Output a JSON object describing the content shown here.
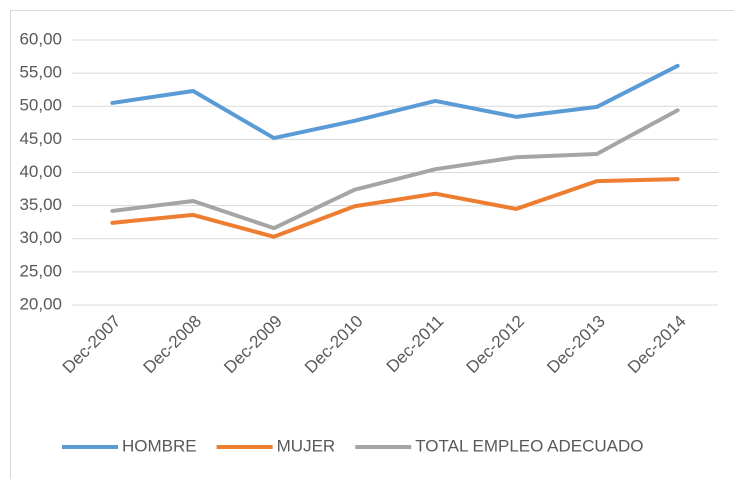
{
  "chart_data": {
    "type": "line",
    "categories": [
      "Dec-2007",
      "Dec-2008",
      "Dec-2009",
      "Dec-2010",
      "Dec-2011",
      "Dec-2012",
      "Dec-2013",
      "Dec-2014"
    ],
    "series": [
      {
        "name": "HOMBRE",
        "color": "#5b9bd5",
        "values": [
          50.5,
          52.3,
          45.2,
          47.8,
          50.8,
          48.4,
          49.9,
          56.1
        ]
      },
      {
        "name": "MUJER",
        "color": "#ed7d31",
        "values": [
          32.4,
          33.6,
          30.3,
          34.9,
          36.8,
          34.5,
          38.7,
          39.0
        ]
      },
      {
        "name": "TOTAL EMPLEO ADECUADO",
        "color": "#a5a5a5",
        "values": [
          34.2,
          35.7,
          31.6,
          37.4,
          40.5,
          42.3,
          42.8,
          49.4
        ]
      }
    ],
    "ylim": [
      20,
      60
    ],
    "yticks": [
      {
        "value": 20,
        "label": "20,00"
      },
      {
        "value": 25,
        "label": "25,00"
      },
      {
        "value": 30,
        "label": "30,00"
      },
      {
        "value": 35,
        "label": "35,00"
      },
      {
        "value": 40,
        "label": "40,00"
      },
      {
        "value": 45,
        "label": "45,00"
      },
      {
        "value": 50,
        "label": "50,00"
      },
      {
        "value": 55,
        "label": "55,00"
      },
      {
        "value": 60,
        "label": "60,00"
      }
    ],
    "grid": true,
    "legend": "bottom"
  }
}
